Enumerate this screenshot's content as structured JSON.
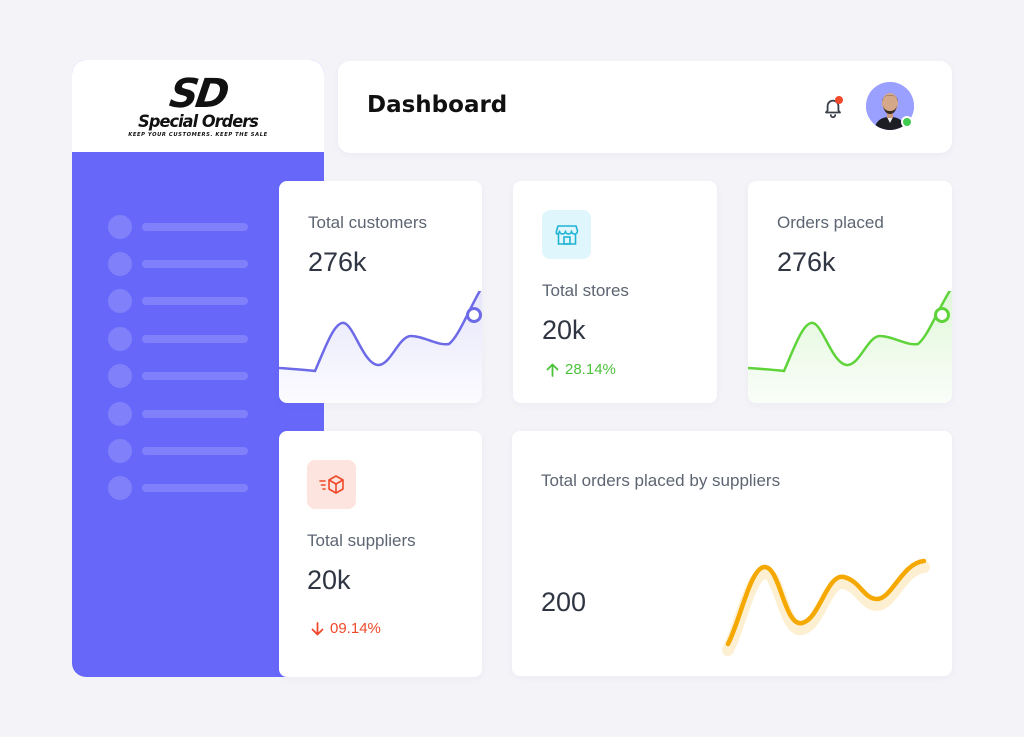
{
  "brand": {
    "logo_initials": "SD",
    "logo_name": "Special Orders",
    "tagline": "KEEP YOUR CUSTOMERS. KEEP THE SALE"
  },
  "sidebar": {
    "items_count": 8
  },
  "header": {
    "title": "Dashboard",
    "notification_icon": "bell-icon",
    "avatar": "user-avatar"
  },
  "cards": {
    "total_customers": {
      "label": "Total customers",
      "value": "276k"
    },
    "total_stores": {
      "label": "Total stores",
      "value": "20k",
      "delta": "28.14%",
      "trend": "up",
      "icon": "store-icon"
    },
    "orders_placed": {
      "label": "Orders placed",
      "value": "276k"
    },
    "total_suppliers": {
      "label": "Total suppliers",
      "value": "20k",
      "delta": "09.14%",
      "trend": "down",
      "icon": "box-delivery-icon"
    },
    "orders_by_suppliers": {
      "label": "Total orders placed by suppliers",
      "value": "200"
    }
  },
  "colors": {
    "sidebar": "#6768fa",
    "purple_line": "#6d6ae8",
    "green_line": "#5fd43a",
    "orange_line": "#f5a800",
    "up": "#4cc23b",
    "down": "#f0482a",
    "store_tile": "#dff6fc",
    "supplier_tile": "#fde4de"
  }
}
